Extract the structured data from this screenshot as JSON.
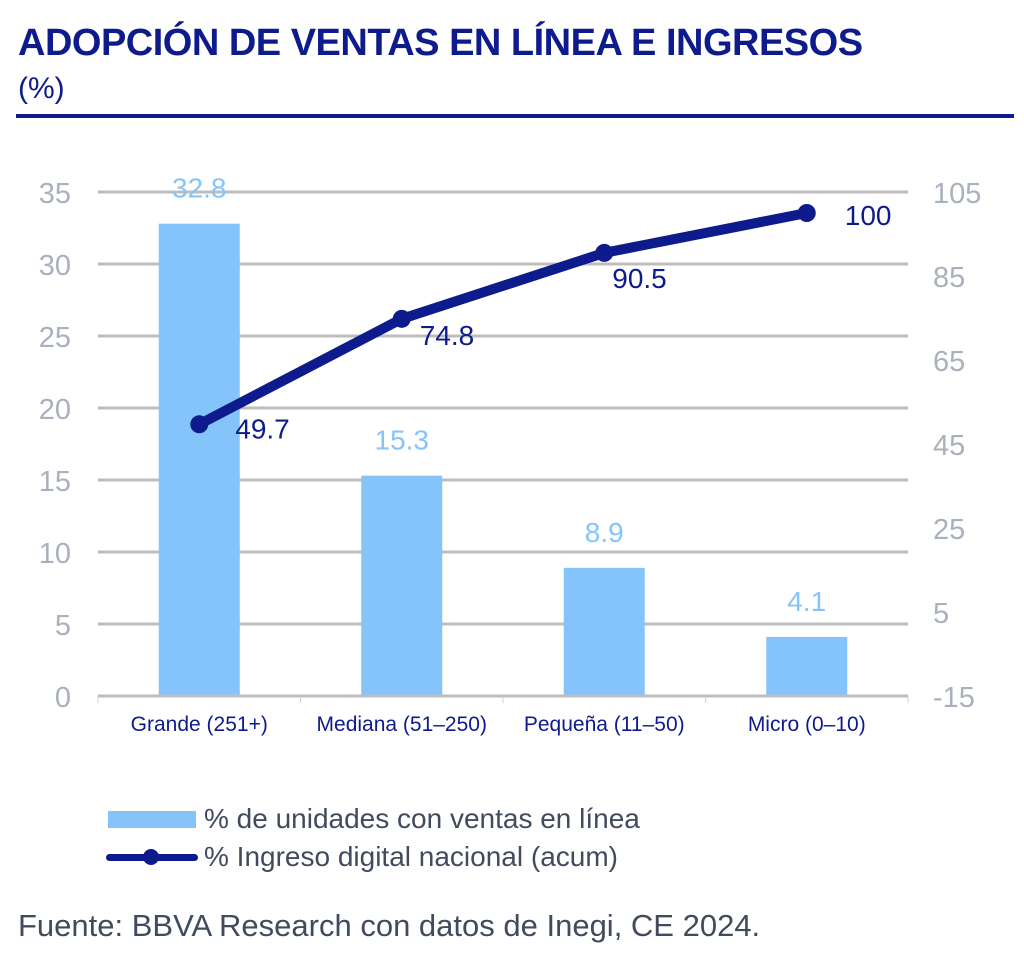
{
  "header": {
    "title": "ADOPCIÓN DE VENTAS EN LÍNEA E INGRESOS",
    "subtitle": "(%)"
  },
  "chart_data": {
    "type": "bar",
    "title": "ADOPCIÓN DE VENTAS EN LÍNEA E INGRESOS (%)",
    "categories": [
      "Grande (251+)",
      "Mediana (51–250)",
      "Pequeña (11–50)",
      "Micro (0–10)"
    ],
    "series": [
      {
        "name": "% de unidades con ventas en línea",
        "type": "bar",
        "axis": "left",
        "color": "#85c4fb",
        "values": [
          32.8,
          15.3,
          8.9,
          4.1
        ],
        "labels": [
          "32.8",
          "15.3",
          "8.9",
          "4.1"
        ]
      },
      {
        "name": "% Ingreso digital nacional (acum)",
        "type": "line",
        "axis": "right",
        "color": "#0d1b8c",
        "values": [
          49.7,
          74.8,
          90.5,
          100
        ],
        "labels": [
          "49.7",
          "74.8",
          "90.5",
          "100"
        ]
      }
    ],
    "y_left": {
      "min": 0,
      "max": 35,
      "ticks": [
        "0",
        "5",
        "10",
        "15",
        "20",
        "25",
        "30",
        "35"
      ]
    },
    "y_right": {
      "min": -15,
      "max": 105,
      "ticks": [
        "-15",
        "5",
        "25",
        "45",
        "65",
        "85",
        "105"
      ]
    },
    "xlabel": "",
    "ylabel": "",
    "grid": true,
    "legend": "bottom-left"
  },
  "legend": {
    "items": [
      {
        "label": "% de unidades con ventas en línea",
        "kind": "bar"
      },
      {
        "label": "% Ingreso digital nacional (acum)",
        "kind": "line"
      }
    ]
  },
  "footer": {
    "source": "Fuente: BBVA Research con datos de Inegi, CE 2024."
  }
}
